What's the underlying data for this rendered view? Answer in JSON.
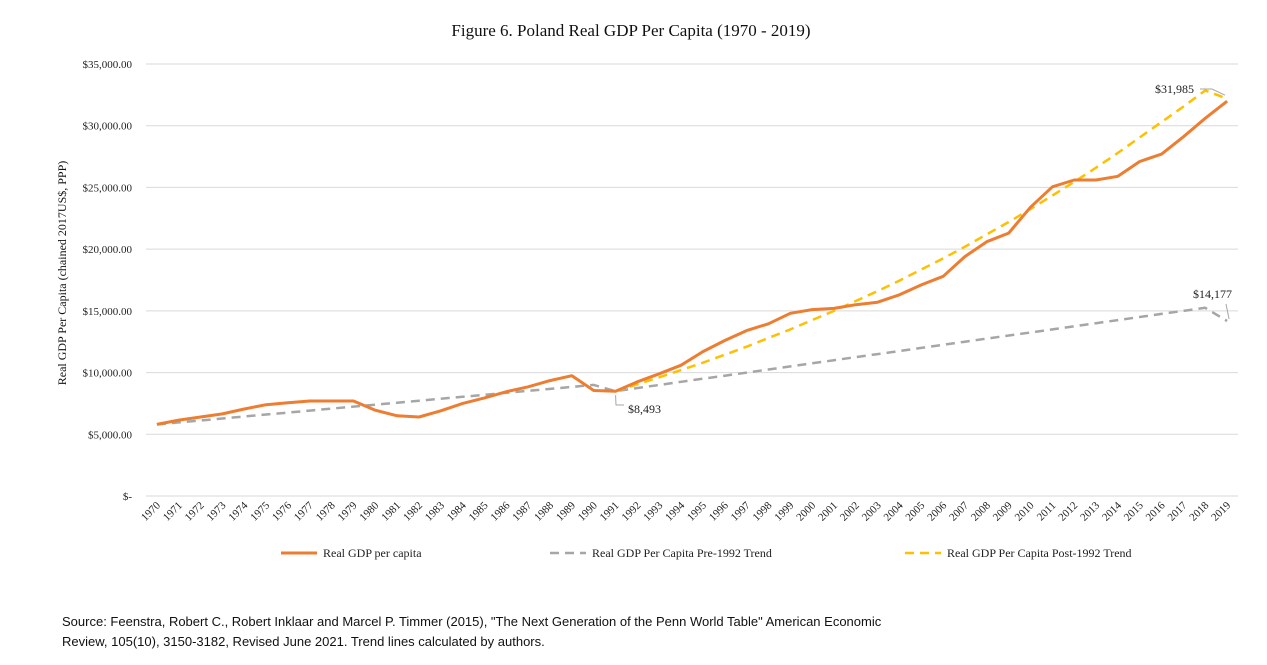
{
  "chart_data": {
    "type": "line",
    "title": "Figure 6. Poland Real GDP Per Capita (1970 - 2019)",
    "ylabel": "Real GDP  Per Capita (chained 2017US$,  PPP)",
    "ylim": [
      0,
      35000
    ],
    "yticks": [
      0,
      5000,
      10000,
      15000,
      20000,
      25000,
      30000,
      35000
    ],
    "ytick_labels": [
      "$-",
      "$5,000.00",
      "$10,000.00",
      "$15,000.00",
      "$20,000.00",
      "$25,000.00",
      "$30,000.00",
      "$35,000.00"
    ],
    "grid": true,
    "legend_position": "bottom",
    "x": [
      "1970",
      "1971",
      "1972",
      "1973",
      "1974",
      "1975",
      "1976",
      "1977",
      "1978",
      "1979",
      "1980",
      "1981",
      "1982",
      "1983",
      "1984",
      "1985",
      "1986",
      "1987",
      "1988",
      "1989",
      "1990",
      "1991",
      "1992",
      "1993",
      "1994",
      "1995",
      "1996",
      "1997",
      "1998",
      "1999",
      "2000",
      "2001",
      "2002",
      "2003",
      "2004",
      "2005",
      "2006",
      "2007",
      "2008",
      "2009",
      "2010",
      "2011",
      "2012",
      "2013",
      "2014",
      "2015",
      "2016",
      "2017",
      "2018",
      "2019"
    ],
    "series": [
      {
        "name": "Real GDP per capita",
        "color": "#ED7D31",
        "style": "solid",
        "values": [
          5800,
          6150,
          6400,
          6650,
          7050,
          7400,
          7550,
          7700,
          7700,
          7700,
          6950,
          6500,
          6400,
          6900,
          7500,
          7950,
          8450,
          8850,
          9350,
          9750,
          8550,
          8493,
          9250,
          9900,
          10600,
          11700,
          12600,
          13400,
          13950,
          14800,
          15100,
          15200,
          15500,
          15700,
          16300,
          17100,
          17800,
          19400,
          20600,
          21300,
          23400,
          25050,
          25600,
          25600,
          25900,
          27100,
          27700,
          29100,
          30600,
          31985
        ]
      },
      {
        "name": "Real GDP Per Capita Pre-1992 Trend",
        "color": "#A6A6A6",
        "style": "dashed",
        "values": [
          5800,
          5960,
          6120,
          6280,
          6440,
          6600,
          6760,
          6920,
          7080,
          7240,
          7400,
          7560,
          7720,
          7880,
          8040,
          8200,
          8360,
          8520,
          8680,
          8840,
          9000,
          8493,
          8754,
          8996,
          9250,
          9500,
          9750,
          10000,
          10250,
          10500,
          10750,
          11000,
          11250,
          11500,
          11750,
          12000,
          12250,
          12500,
          12750,
          13000,
          13250,
          13500,
          13750,
          14000,
          14250,
          14500,
          14750,
          15000,
          15250,
          14177
        ]
      },
      {
        "name": "Real GDP Per Capita Post-1992 Trend",
        "color": "#FFC000",
        "style": "dashed",
        "values": [
          null,
          null,
          null,
          null,
          null,
          null,
          null,
          null,
          null,
          null,
          null,
          null,
          null,
          null,
          null,
          null,
          null,
          null,
          null,
          null,
          null,
          8493,
          9050,
          9620,
          10200,
          10800,
          11450,
          12100,
          12800,
          13500,
          14250,
          15000,
          15800,
          16600,
          17450,
          18350,
          19250,
          20200,
          21200,
          22200,
          23250,
          24350,
          25450,
          26600,
          27800,
          29050,
          30300,
          31550,
          32850,
          32200
        ]
      }
    ],
    "annotations": [
      {
        "text": "$8,493",
        "year": "1991",
        "value": 8493
      },
      {
        "text": "$14,177",
        "year": "2019",
        "value": 14177
      },
      {
        "text": "$31,985",
        "year": "2019",
        "value": 31985
      }
    ]
  },
  "source_note": {
    "line1": "Source: Feenstra, Robert C., Robert Inklaar and Marcel P. Timmer (2015), \"The Next Generation of the Penn World Table\" American Economic",
    "line2": "Review, 105(10), 3150-3182,  Revised June 2021. Trend lines calculated by authors."
  }
}
